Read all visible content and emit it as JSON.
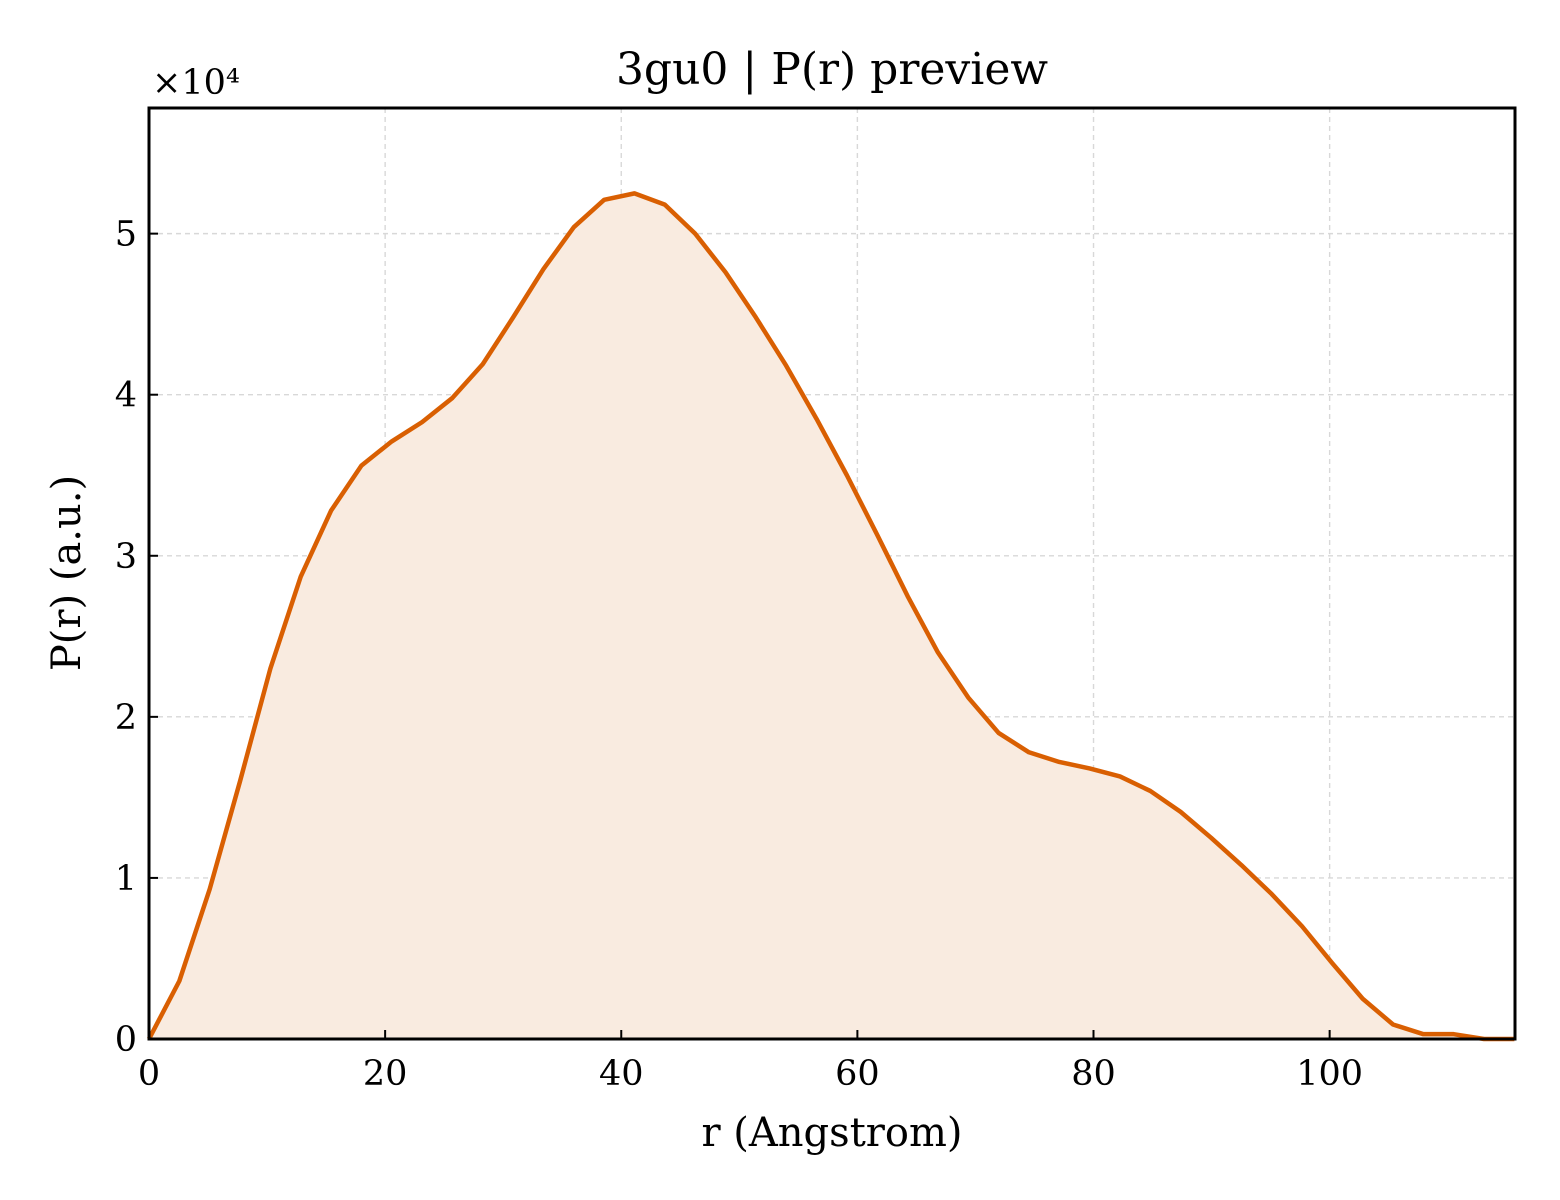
{
  "chart_data": {
    "type": "area",
    "title": "3gu0 | P(r) preview",
    "xlabel": "r (Angstrom)",
    "ylabel": "P(r) (a.u.)",
    "y_multiplier_label": "×10⁴",
    "xlim": [
      0,
      115.7
    ],
    "ylim": [
      0,
      5.78
    ],
    "x_ticks": [
      0,
      20,
      40,
      60,
      80,
      100
    ],
    "y_ticks": [
      0,
      1,
      2,
      3,
      4,
      5
    ],
    "grid": true,
    "line_color": "#d95f02",
    "fill_color": "#f9ebe0",
    "series": [
      {
        "x": [
          0,
          2.57,
          5.14,
          7.71,
          10.28,
          12.85,
          15.42,
          17.99,
          20.56,
          23.13,
          25.7,
          28.27,
          30.84,
          33.41,
          35.98,
          38.55,
          41.12,
          43.69,
          46.26,
          48.83,
          51.4,
          53.97,
          56.54,
          59.11,
          61.68,
          64.25,
          66.82,
          69.39,
          71.96,
          74.53,
          77.1,
          79.67,
          82.24,
          84.81,
          87.38,
          89.95,
          92.52,
          95.09,
          97.66,
          100.23,
          102.8,
          105.37,
          107.94,
          110.51,
          113.08,
          115.65
        ],
        "y": [
          0.0,
          0.36,
          0.93,
          1.6,
          2.3,
          2.87,
          3.28,
          3.56,
          3.71,
          3.83,
          3.98,
          4.19,
          4.48,
          4.78,
          5.04,
          5.21,
          5.25,
          5.18,
          5.0,
          4.76,
          4.48,
          4.18,
          3.85,
          3.5,
          3.13,
          2.75,
          2.4,
          2.12,
          1.9,
          1.78,
          1.72,
          1.68,
          1.63,
          1.54,
          1.41,
          1.25,
          1.08,
          0.9,
          0.7,
          0.47,
          0.25,
          0.09,
          0.03,
          0.03,
          0.0,
          0.0
        ]
      }
    ]
  }
}
